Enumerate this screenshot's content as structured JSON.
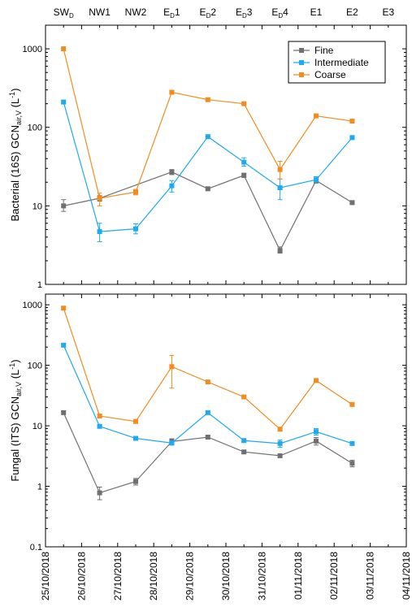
{
  "chart_data": [
    {
      "type": "line",
      "panel": "top",
      "y_scale": "log",
      "ylim": [
        1,
        2000
      ],
      "ylabel_parts": [
        {
          "t": "Bacterial (16S) GCN",
          "sub": false
        },
        {
          "t": "air,V",
          "sub": true
        },
        {
          "t": " (L",
          "sub": false
        },
        {
          "t": "-1",
          "sup": true
        },
        {
          "t": ")",
          "sub": false
        }
      ],
      "y_ticks": [
        1,
        10,
        100,
        1000
      ],
      "y_tick_labels": [
        "1",
        "10",
        "100",
        "1000"
      ],
      "top_labels": [
        {
          "base": "SW",
          "sub": "D",
          "rest": "",
          "date": "2018-10-25T12:00"
        },
        {
          "base": "NW1",
          "sub": "",
          "rest": "",
          "date": "2018-10-26T12:00"
        },
        {
          "base": "NW2",
          "sub": "",
          "rest": "",
          "date": "2018-10-27T12:00"
        },
        {
          "base": "E",
          "sub": "D",
          "rest": "1",
          "date": "2018-10-28T12:00"
        },
        {
          "base": "E",
          "sub": "D",
          "rest": "2",
          "date": "2018-10-29T12:00"
        },
        {
          "base": "E",
          "sub": "D",
          "rest": "3",
          "date": "2018-10-30T12:00"
        },
        {
          "base": "E",
          "sub": "D",
          "rest": "4",
          "date": "2018-10-31T12:00"
        },
        {
          "base": "E1",
          "sub": "",
          "rest": "",
          "date": "2018-11-01T12:00"
        },
        {
          "base": "E2",
          "sub": "",
          "rest": "",
          "date": "2018-11-02T12:00"
        },
        {
          "base": "E3",
          "sub": "",
          "rest": "",
          "date": "2018-11-03T12:00"
        }
      ],
      "legend": {
        "placement": "top-right",
        "entries": [
          "Fine",
          "Intermediate",
          "Coarse"
        ]
      },
      "series": [
        {
          "name": "Fine",
          "color": "#707070",
          "points": [
            {
              "x": "2018-10-25T12:00",
              "y": 10,
              "lo": 8.5,
              "hi": 12
            },
            {
              "x": "2018-10-26T12:00",
              "y": 12.5,
              "lo": 11.5,
              "hi": 13.5
            },
            {
              "x": "2018-10-28T12:00",
              "y": 27,
              "lo": 25,
              "hi": 29
            },
            {
              "x": "2018-10-29T12:00",
              "y": 16.5,
              "lo": 16,
              "hi": 17
            },
            {
              "x": "2018-10-30T12:00",
              "y": 24.5,
              "lo": 23,
              "hi": 26
            },
            {
              "x": "2018-10-31T12:00",
              "y": 2.7,
              "lo": 2.5,
              "hi": 3
            },
            {
              "x": "2018-11-01T12:00",
              "y": 21,
              "lo": 19.5,
              "hi": 22.5
            },
            {
              "x": "2018-11-02T12:00",
              "y": 11,
              "lo": 10.5,
              "hi": 11.5
            }
          ]
        },
        {
          "name": "Intermediate",
          "color": "#1eaaf1",
          "points": [
            {
              "x": "2018-10-25T12:00",
              "y": 210,
              "lo": 200,
              "hi": 220
            },
            {
              "x": "2018-10-26T12:00",
              "y": 4.7,
              "lo": 3.5,
              "hi": 6
            },
            {
              "x": "2018-10-27T12:00",
              "y": 5.1,
              "lo": 4.4,
              "hi": 5.9
            },
            {
              "x": "2018-10-28T12:00",
              "y": 18,
              "lo": 15,
              "hi": 21
            },
            {
              "x": "2018-10-29T12:00",
              "y": 76,
              "lo": 73,
              "hi": 80
            },
            {
              "x": "2018-10-30T12:00",
              "y": 36,
              "lo": 32,
              "hi": 41
            },
            {
              "x": "2018-10-31T12:00",
              "y": 17,
              "lo": 12,
              "hi": 22
            },
            {
              "x": "2018-11-01T12:00",
              "y": 21.5,
              "lo": 20,
              "hi": 23.5
            },
            {
              "x": "2018-11-02T12:00",
              "y": 74,
              "lo": 71,
              "hi": 77
            }
          ]
        },
        {
          "name": "Coarse",
          "color": "#f28c1e",
          "points": [
            {
              "x": "2018-10-25T12:00",
              "y": 1000,
              "lo": 980,
              "hi": 1020
            },
            {
              "x": "2018-10-26T12:00",
              "y": 12.5,
              "lo": 10,
              "hi": 14.5
            },
            {
              "x": "2018-10-27T12:00",
              "y": 15,
              "lo": 13.8,
              "hi": 16.2
            },
            {
              "x": "2018-10-28T12:00",
              "y": 280,
              "lo": 272,
              "hi": 288
            },
            {
              "x": "2018-10-29T12:00",
              "y": 225,
              "lo": 218,
              "hi": 232
            },
            {
              "x": "2018-10-30T12:00",
              "y": 200,
              "lo": 193,
              "hi": 207
            },
            {
              "x": "2018-10-31T12:00",
              "y": 29,
              "lo": 22,
              "hi": 37
            },
            {
              "x": "2018-11-01T12:00",
              "y": 140,
              "lo": 136,
              "hi": 144
            },
            {
              "x": "2018-11-02T12:00",
              "y": 120,
              "lo": 116,
              "hi": 124
            }
          ]
        }
      ]
    },
    {
      "type": "line",
      "panel": "bottom",
      "y_scale": "log",
      "ylim": [
        0.1,
        1500
      ],
      "ylabel_parts": [
        {
          "t": "Fungal (ITS) GCN",
          "sub": false
        },
        {
          "t": "air,V",
          "sub": true
        },
        {
          "t": " (L",
          "sub": false
        },
        {
          "t": "-1",
          "sup": true
        },
        {
          "t": ")",
          "sub": false
        }
      ],
      "y_ticks": [
        0.1,
        1,
        10,
        100,
        1000
      ],
      "y_tick_labels": [
        "0.1",
        "1",
        "10",
        "100",
        "1000"
      ],
      "x_range": [
        "2018-10-25",
        "2018-11-04"
      ],
      "x_ticks": [
        "2018-10-25",
        "2018-10-26",
        "2018-10-27",
        "2018-10-28",
        "2018-10-29",
        "2018-10-30",
        "2018-10-31",
        "2018-11-01",
        "2018-11-02",
        "2018-11-03",
        "2018-11-04"
      ],
      "x_tick_labels": [
        "25/10/2018",
        "26/10/2018",
        "27/10/2018",
        "28/10/2018",
        "29/10/2018",
        "30/10/2018",
        "31/10/2018",
        "01/11/2018",
        "02/11/2018",
        "03/11/2018",
        "04/11/2018"
      ],
      "series": [
        {
          "name": "Fine",
          "color": "#707070",
          "points": [
            {
              "x": "2018-10-25T12:00",
              "y": 16.5,
              "lo": 15.5,
              "hi": 17.5
            },
            {
              "x": "2018-10-26T12:00",
              "y": 0.78,
              "lo": 0.6,
              "hi": 0.97
            },
            {
              "x": "2018-10-27T12:00",
              "y": 1.2,
              "lo": 1.05,
              "hi": 1.35
            },
            {
              "x": "2018-10-28T12:00",
              "y": 5.5,
              "lo": 4.9,
              "hi": 6.1
            },
            {
              "x": "2018-10-29T12:00",
              "y": 6.5,
              "lo": 6.2,
              "hi": 6.8
            },
            {
              "x": "2018-10-30T12:00",
              "y": 3.7,
              "lo": 3.5,
              "hi": 3.9
            },
            {
              "x": "2018-10-31T12:00",
              "y": 3.2,
              "lo": 3.05,
              "hi": 3.35
            },
            {
              "x": "2018-11-01T12:00",
              "y": 5.6,
              "lo": 4.8,
              "hi": 6.4
            },
            {
              "x": "2018-11-02T12:00",
              "y": 2.4,
              "lo": 2.1,
              "hi": 2.7
            }
          ]
        },
        {
          "name": "Intermediate",
          "color": "#1eaaf1",
          "points": [
            {
              "x": "2018-10-25T12:00",
              "y": 215,
              "lo": 205,
              "hi": 225
            },
            {
              "x": "2018-10-26T12:00",
              "y": 9.8,
              "lo": 9.2,
              "hi": 10.4
            },
            {
              "x": "2018-10-27T12:00",
              "y": 6.2,
              "lo": 5.8,
              "hi": 6.6
            },
            {
              "x": "2018-10-28T12:00",
              "y": 5.2,
              "lo": 4.8,
              "hi": 5.6
            },
            {
              "x": "2018-10-29T12:00",
              "y": 16.5,
              "lo": 15.8,
              "hi": 17.2
            },
            {
              "x": "2018-10-30T12:00",
              "y": 5.7,
              "lo": 5.4,
              "hi": 6
            },
            {
              "x": "2018-10-31T12:00",
              "y": 5.1,
              "lo": 4.4,
              "hi": 5.8
            },
            {
              "x": "2018-11-01T12:00",
              "y": 8,
              "lo": 7,
              "hi": 9
            },
            {
              "x": "2018-11-02T12:00",
              "y": 5.1,
              "lo": 4.8,
              "hi": 5.4
            }
          ]
        },
        {
          "name": "Coarse",
          "color": "#f28c1e",
          "points": [
            {
              "x": "2018-10-25T12:00",
              "y": 880,
              "lo": 850,
              "hi": 910
            },
            {
              "x": "2018-10-26T12:00",
              "y": 14.5,
              "lo": 13.8,
              "hi": 15.2
            },
            {
              "x": "2018-10-27T12:00",
              "y": 11.8,
              "lo": 11.3,
              "hi": 12.3
            },
            {
              "x": "2018-10-28T12:00",
              "y": 95,
              "lo": 42,
              "hi": 145
            },
            {
              "x": "2018-10-29T12:00",
              "y": 53,
              "lo": 51,
              "hi": 55
            },
            {
              "x": "2018-10-30T12:00",
              "y": 30,
              "lo": 28.8,
              "hi": 31.2
            },
            {
              "x": "2018-10-31T12:00",
              "y": 8.8,
              "lo": 8.2,
              "hi": 9.4
            },
            {
              "x": "2018-11-01T12:00",
              "y": 56,
              "lo": 54,
              "hi": 58
            },
            {
              "x": "2018-11-02T12:00",
              "y": 22.5,
              "lo": 21.5,
              "hi": 23.5
            }
          ]
        }
      ]
    }
  ]
}
